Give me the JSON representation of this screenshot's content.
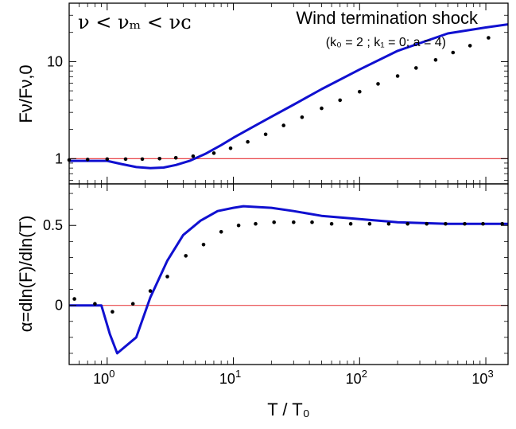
{
  "figure": {
    "title": "Wind termination shock",
    "subtitle": "(k₀ = 2 ; k₁ = 0; a = 4)",
    "condition": "ν < νₘ < νᴄ",
    "xlabel": "T / T₀",
    "top_ylabel": "Fν/Fν,0",
    "bottom_ylabel": "α=dln(F)/dln(T)",
    "colors": {
      "model": "#1010d0",
      "reference": "#e8474a",
      "points": "#000000"
    }
  },
  "chart_data": [
    {
      "type": "line",
      "panel": "top",
      "x_scale": "log",
      "y_scale": "log",
      "xlim": [
        0.5,
        1500
      ],
      "ylim": [
        0.55,
        40
      ],
      "x_ticks": [
        "10⁰",
        "10¹",
        "10²",
        "10³"
      ],
      "y_ticks": [
        "1",
        "10"
      ],
      "reference_y": 1,
      "series": [
        {
          "style": "line",
          "x": [
            0.5,
            0.7,
            1.0,
            1.3,
            1.7,
            2.2,
            2.8,
            3.5,
            4.5,
            6,
            8,
            10,
            15,
            20,
            30,
            50,
            100,
            200,
            500,
            1000,
            1500
          ],
          "y": [
            0.95,
            0.95,
            0.95,
            0.88,
            0.82,
            0.8,
            0.81,
            0.86,
            0.95,
            1.12,
            1.38,
            1.64,
            2.2,
            2.7,
            3.6,
            5.2,
            8.3,
            12.9,
            19.5,
            22.5,
            24.2
          ]
        },
        {
          "style": "points",
          "x": [
            0.5,
            0.7,
            1.0,
            1.4,
            1.9,
            2.6,
            3.5,
            4.8,
            7,
            9.5,
            13,
            18,
            25,
            35,
            50,
            70,
            100,
            140,
            200,
            280,
            400,
            550,
            750,
            1050
          ],
          "y": [
            0.97,
            0.98,
            0.99,
            0.99,
            0.99,
            1.0,
            1.02,
            1.06,
            1.14,
            1.28,
            1.49,
            1.78,
            2.2,
            2.67,
            3.3,
            4.0,
            4.9,
            5.9,
            7.1,
            8.6,
            10.4,
            12.4,
            14.6,
            17.6
          ]
        }
      ]
    },
    {
      "type": "line",
      "panel": "bottom",
      "x_scale": "log",
      "y_scale": "linear",
      "xlim": [
        0.5,
        1500
      ],
      "ylim": [
        -0.37,
        0.76
      ],
      "x_ticks": [
        "10⁰",
        "10¹",
        "10²",
        "10³"
      ],
      "y_ticks": [
        "0",
        "0.5"
      ],
      "reference_y": 0,
      "series": [
        {
          "style": "line",
          "x": [
            0.5,
            0.7,
            0.9,
            1.05,
            1.2,
            1.7,
            2.2,
            3.0,
            4.0,
            5.5,
            7.5,
            10,
            12,
            20,
            30,
            50,
            100,
            200,
            500,
            1000,
            1500
          ],
          "y": [
            0.0,
            0.0,
            0.0,
            -0.18,
            -0.3,
            -0.2,
            0.05,
            0.28,
            0.44,
            0.53,
            0.59,
            0.61,
            0.62,
            0.61,
            0.59,
            0.56,
            0.54,
            0.52,
            0.51,
            0.51,
            0.51
          ]
        },
        {
          "style": "points",
          "x": [
            0.55,
            0.8,
            1.1,
            1.6,
            2.2,
            3.0,
            4.2,
            5.8,
            8,
            11,
            15,
            21,
            30,
            42,
            60,
            85,
            120,
            170,
            240,
            340,
            480,
            680,
            950,
            1350
          ],
          "y": [
            0.04,
            0.01,
            -0.04,
            0.01,
            0.09,
            0.18,
            0.31,
            0.38,
            0.46,
            0.5,
            0.51,
            0.52,
            0.52,
            0.52,
            0.51,
            0.51,
            0.51,
            0.51,
            0.51,
            0.51,
            0.51,
            0.51,
            0.51,
            0.51
          ]
        }
      ]
    }
  ]
}
